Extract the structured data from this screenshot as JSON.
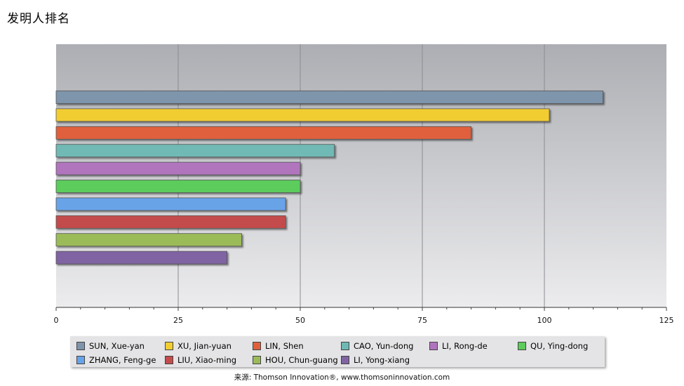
{
  "title": "发明人排名",
  "source": "来源: Thomson Innovation®, www.thomsoninnovation.com",
  "chart_data": {
    "type": "bar",
    "orientation": "horizontal",
    "title": "发明人排名",
    "xlim": [
      0,
      125
    ],
    "xticks": [
      0,
      25,
      50,
      75,
      100,
      125
    ],
    "grid": true,
    "legend_position": "bottom",
    "series": [
      {
        "name": "SUN, Xue-yan",
        "value": 112,
        "color": "#7e95ab"
      },
      {
        "name": "XU, Jian-yuan",
        "value": 101,
        "color": "#f2cd31"
      },
      {
        "name": "LIN, Shen",
        "value": 85,
        "color": "#e0603e"
      },
      {
        "name": "CAO, Yun-dong",
        "value": 57,
        "color": "#6fb9b4"
      },
      {
        "name": "LI, Rong-de",
        "value": 50,
        "color": "#b074bd"
      },
      {
        "name": "QU, Ying-dong",
        "value": 50,
        "color": "#5ccc5c"
      },
      {
        "name": "ZHANG, Feng-ge",
        "value": 47,
        "color": "#67a3e8"
      },
      {
        "name": "LIU, Xiao-ming",
        "value": 47,
        "color": "#c44c4c"
      },
      {
        "name": "HOU, Chun-guang",
        "value": 38,
        "color": "#9bbb59"
      },
      {
        "name": "LI, Yong-xiang",
        "value": 35,
        "color": "#8064a2"
      }
    ]
  }
}
